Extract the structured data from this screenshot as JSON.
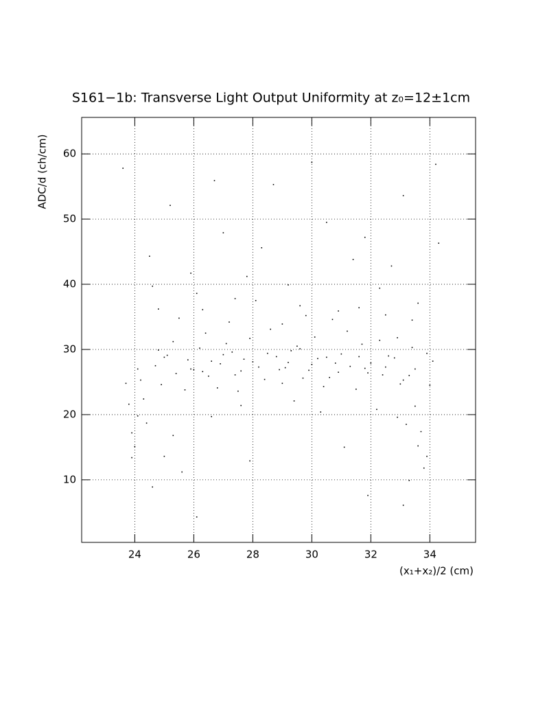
{
  "chart_data": {
    "type": "scatter",
    "title": "S161−1b: Transverse Light Output Uniformity at z₀=12±1cm",
    "x_label": "(x₁+x₂)/2 (cm)",
    "y_label": "ADC/d (ch/cm)",
    "color": "#000000",
    "grid": true,
    "xlim": [
      22.2,
      35.55
    ],
    "ylim": [
      0.4,
      65.6
    ],
    "xticks": [
      24,
      26,
      28,
      30,
      32,
      34
    ],
    "yticks": [
      10,
      20,
      30,
      40,
      50,
      60
    ],
    "x": [
      24.7,
      25.1,
      25.4,
      25.8,
      26.2,
      26.5,
      26.9,
      27.3,
      27.6,
      28.0,
      28.4,
      28.8,
      29.1,
      29.5,
      29.9,
      30.2,
      30.6,
      31.0,
      31.3,
      31.7,
      32.0,
      32.4,
      32.8,
      33.1,
      33.5,
      33.9,
      24.9,
      25.3,
      25.7,
      26.0,
      26.4,
      26.8,
      27.1,
      27.5,
      27.9,
      28.2,
      28.6,
      29.0,
      29.3,
      29.7,
      30.1,
      30.4,
      30.8,
      31.2,
      31.5,
      31.9,
      32.3,
      32.6,
      33.0,
      33.4,
      24.3,
      24.1,
      23.9,
      24.2,
      23.8,
      24.0,
      23.7,
      24.4,
      23.9,
      24.1,
      33.2,
      33.6,
      33.8,
      33.5,
      33.9,
      34.0,
      33.3,
      33.7,
      32.9,
      34.1,
      23.6,
      24.5,
      25.2,
      26.1,
      27.0,
      27.8,
      28.7,
      29.6,
      30.5,
      31.4,
      32.3,
      33.1,
      34.2,
      24.8,
      25.9,
      26.7,
      27.4,
      28.3,
      29.2,
      30.0,
      30.9,
      31.8,
      32.7,
      33.6,
      34.3,
      24.6,
      25.5,
      26.3,
      27.2,
      28.1,
      29.0,
      29.8,
      30.7,
      31.6,
      32.5,
      33.4,
      26.6,
      27.9,
      29.4,
      31.1,
      32.2,
      25.0,
      25.6,
      26.1,
      31.9,
      33.1,
      27.6,
      30.3,
      24.6,
      25.3,
      25.0,
      25.9,
      26.6,
      27.4,
      28.5,
      29.2,
      30.0,
      30.9,
      31.6,
      32.5,
      26.3,
      27.7,
      28.9,
      30.5,
      31.8,
      33.3,
      24.8,
      32.9,
      27.0,
      29.6
    ],
    "y": [
      27.5,
      29.1,
      26.3,
      28.4,
      30.2,
      25.9,
      27.8,
      29.6,
      26.7,
      28.1,
      25.4,
      28.9,
      27.2,
      30.5,
      26.8,
      28.6,
      25.7,
      29.3,
      27.4,
      30.8,
      27.9,
      26.1,
      28.7,
      25.3,
      27.0,
      29.4,
      24.6,
      31.2,
      23.8,
      26.9,
      32.5,
      24.1,
      30.9,
      23.6,
      31.7,
      27.3,
      33.1,
      24.8,
      29.8,
      25.6,
      31.9,
      24.3,
      27.9,
      32.8,
      23.9,
      26.4,
      31.4,
      29.0,
      24.7,
      30.3,
      22.4,
      19.8,
      17.2,
      25.3,
      21.6,
      15.1,
      24.8,
      18.7,
      13.4,
      27.0,
      18.5,
      15.2,
      11.8,
      21.3,
      13.6,
      24.5,
      9.9,
      17.4,
      19.6,
      28.2,
      57.8,
      44.3,
      52.1,
      38.6,
      47.9,
      41.2,
      55.3,
      36.7,
      49.5,
      43.8,
      39.4,
      53.6,
      58.4,
      36.2,
      41.7,
      55.9,
      37.8,
      45.6,
      39.9,
      58.7,
      35.9,
      47.2,
      42.8,
      37.1,
      46.3,
      39.7,
      34.8,
      36.1,
      34.2,
      37.5,
      33.9,
      35.2,
      34.6,
      36.4,
      35.3,
      34.5,
      19.7,
      12.9,
      22.1,
      15.0,
      20.8,
      13.6,
      11.2,
      4.3,
      7.6,
      6.1,
      21.4,
      20.4,
      8.9,
      16.8,
      28.8,
      27.0,
      28.2,
      26.1,
      29.4,
      28.0,
      27.7,
      26.5,
      28.9,
      27.3,
      26.6,
      28.5,
      26.9,
      28.8,
      27.1,
      26.0,
      29.9,
      31.8,
      29.2,
      30.1
    ]
  }
}
